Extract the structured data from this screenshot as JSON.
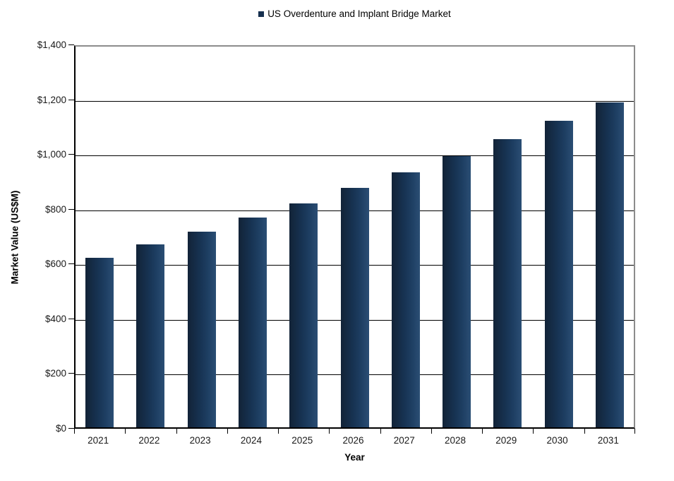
{
  "chart_data": {
    "type": "bar",
    "legend_label": "US Overdenture and Implant Bridge Market",
    "xlabel": "Year",
    "ylabel": "Market Value (US$M)",
    "categories": [
      "2021",
      "2022",
      "2023",
      "2024",
      "2025",
      "2026",
      "2027",
      "2028",
      "2029",
      "2030",
      "2031"
    ],
    "values": [
      620,
      667,
      715,
      766,
      818,
      875,
      932,
      990,
      1052,
      1118,
      1185
    ],
    "ylim": [
      0,
      1400
    ],
    "ytick_step": 200,
    "yticks": [
      {
        "value": 0,
        "label": "$0"
      },
      {
        "value": 200,
        "label": "$200"
      },
      {
        "value": 400,
        "label": "$400"
      },
      {
        "value": 600,
        "label": "$600"
      },
      {
        "value": 800,
        "label": "$800"
      },
      {
        "value": 1000,
        "label": "$1,000"
      },
      {
        "value": 1200,
        "label": "$1,200"
      },
      {
        "value": 1400,
        "label": "$1,400"
      }
    ],
    "grid": "horizontal-major",
    "legend_position": "top-center",
    "bar_color": "#16304f",
    "bar_gradient": [
      "#122337",
      "#173353",
      "#2b4e74"
    ],
    "gridline_color": "#000000",
    "plot_border_color": "#8c8c8c"
  }
}
